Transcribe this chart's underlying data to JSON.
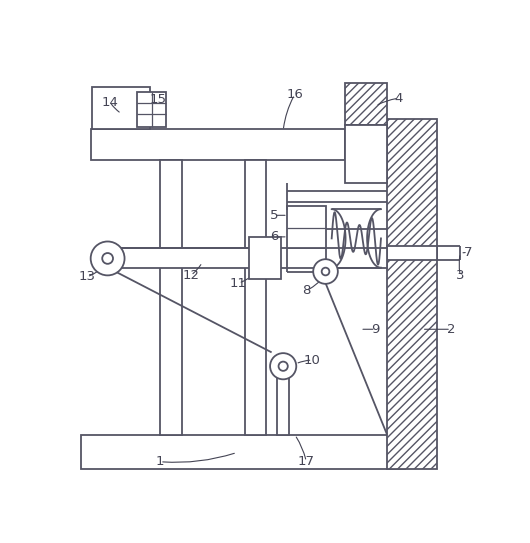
{
  "background_color": "#ffffff",
  "line_color": "#555565",
  "label_color": "#444454",
  "fig_width": 5.3,
  "fig_height": 5.43,
  "dpi": 100
}
